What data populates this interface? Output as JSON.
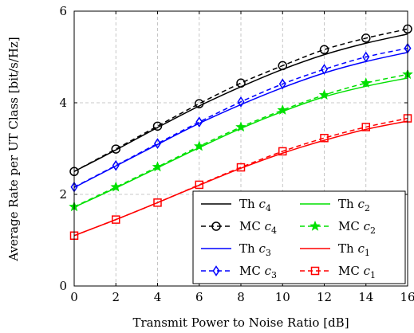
{
  "chart_data": {
    "type": "line",
    "xlabel": "Transmit Power to Noise Ratio [dB]",
    "ylabel": "Average Rate per UT Class [bit/s/Hz]",
    "xlim": [
      0,
      16
    ],
    "ylim": [
      0,
      6
    ],
    "xticks": [
      0,
      2,
      4,
      6,
      8,
      10,
      12,
      14,
      16
    ],
    "yticks": [
      0,
      2,
      4,
      6
    ],
    "grid": true,
    "legend_position": "bottom-right",
    "x": [
      0,
      2,
      4,
      6,
      8,
      10,
      12,
      14,
      16
    ],
    "series": [
      {
        "name": "Th c",
        "sub": "4",
        "color": "#000000",
        "style": "solid",
        "marker": "none",
        "x": [
          0,
          2,
          4,
          6,
          8,
          10,
          12,
          14,
          16
        ],
        "values": [
          2.5,
          2.97,
          3.46,
          3.93,
          4.35,
          4.73,
          5.05,
          5.3,
          5.5
        ]
      },
      {
        "name": "MC c",
        "sub": "4",
        "color": "#000000",
        "style": "dashed",
        "marker": "circle",
        "x": [
          0,
          2,
          4,
          6,
          8,
          10,
          12,
          14,
          16
        ],
        "values": [
          2.5,
          2.99,
          3.49,
          3.98,
          4.43,
          4.81,
          5.16,
          5.41,
          5.61
        ]
      },
      {
        "name": "Th c",
        "sub": "3",
        "color": "#0000ff",
        "style": "solid",
        "marker": "none",
        "x": [
          0,
          2,
          4,
          6,
          8,
          10,
          12,
          14,
          16
        ],
        "values": [
          2.15,
          2.62,
          3.09,
          3.55,
          3.96,
          4.33,
          4.65,
          4.9,
          5.1
        ]
      },
      {
        "name": "MC c",
        "sub": "3",
        "color": "#0000ff",
        "style": "dashed",
        "marker": "diamond",
        "x": [
          0,
          2,
          4,
          6,
          8,
          10,
          12,
          14,
          16
        ],
        "values": [
          2.16,
          2.63,
          3.11,
          3.58,
          4.02,
          4.41,
          4.73,
          5.0,
          5.19
        ]
      },
      {
        "name": "Th c",
        "sub": "2",
        "color": "#00e000",
        "style": "solid",
        "marker": "none",
        "x": [
          0,
          2,
          4,
          6,
          8,
          10,
          12,
          14,
          16
        ],
        "values": [
          1.72,
          2.14,
          2.58,
          3.02,
          3.44,
          3.81,
          4.13,
          4.36,
          4.54
        ]
      },
      {
        "name": "MC c",
        "sub": "2",
        "color": "#00e000",
        "style": "dashed",
        "marker": "star",
        "x": [
          0,
          2,
          4,
          6,
          8,
          10,
          12,
          14,
          16
        ],
        "values": [
          1.73,
          2.16,
          2.6,
          3.05,
          3.47,
          3.84,
          4.17,
          4.43,
          4.62
        ]
      },
      {
        "name": "Th c",
        "sub": "1",
        "color": "#ff0000",
        "style": "solid",
        "marker": "none",
        "x": [
          0,
          2,
          4,
          6,
          8,
          10,
          12,
          14,
          16
        ],
        "values": [
          1.1,
          1.45,
          1.82,
          2.2,
          2.57,
          2.9,
          3.18,
          3.42,
          3.6
        ]
      },
      {
        "name": "MC c",
        "sub": "1",
        "color": "#ff0000",
        "style": "dashed",
        "marker": "square",
        "x": [
          0,
          2,
          4,
          6,
          8,
          10,
          12,
          14,
          16
        ],
        "values": [
          1.1,
          1.45,
          1.82,
          2.21,
          2.59,
          2.94,
          3.23,
          3.47,
          3.66
        ]
      }
    ]
  }
}
